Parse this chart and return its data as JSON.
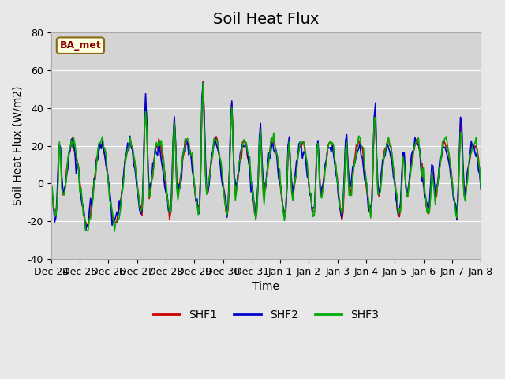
{
  "title": "Soil Heat Flux",
  "ylabel": "Soil Heat Flux (W/m2)",
  "xlabel": "Time",
  "ylim": [
    -40,
    80
  ],
  "background_color": "#e8e8e8",
  "plot_bg_color": "#d8d8d8",
  "legend_label": "BA_met",
  "series_colors": {
    "SHF1": "#cc0000",
    "SHF2": "#0000cc",
    "SHF3": "#00aa00"
  },
  "series_linewidths": {
    "SHF1": 1.5,
    "SHF2": 1.5,
    "SHF3": 1.5
  },
  "tick_labels": [
    "Dec 24",
    "Dec 25",
    "Dec 26",
    "Dec 27",
    "Dec 28",
    "Dec 29",
    "Dec 30",
    "Dec 31",
    "Jan 1",
    "Jan 2",
    "Jan 3",
    "Jan 4",
    "Jan 5",
    "Jan 6",
    "Jan 7",
    "Jan 8"
  ],
  "yticks": [
    -40,
    -20,
    0,
    20,
    40,
    60,
    80
  ],
  "title_fontsize": 14,
  "axis_label_fontsize": 10,
  "tick_fontsize": 9
}
